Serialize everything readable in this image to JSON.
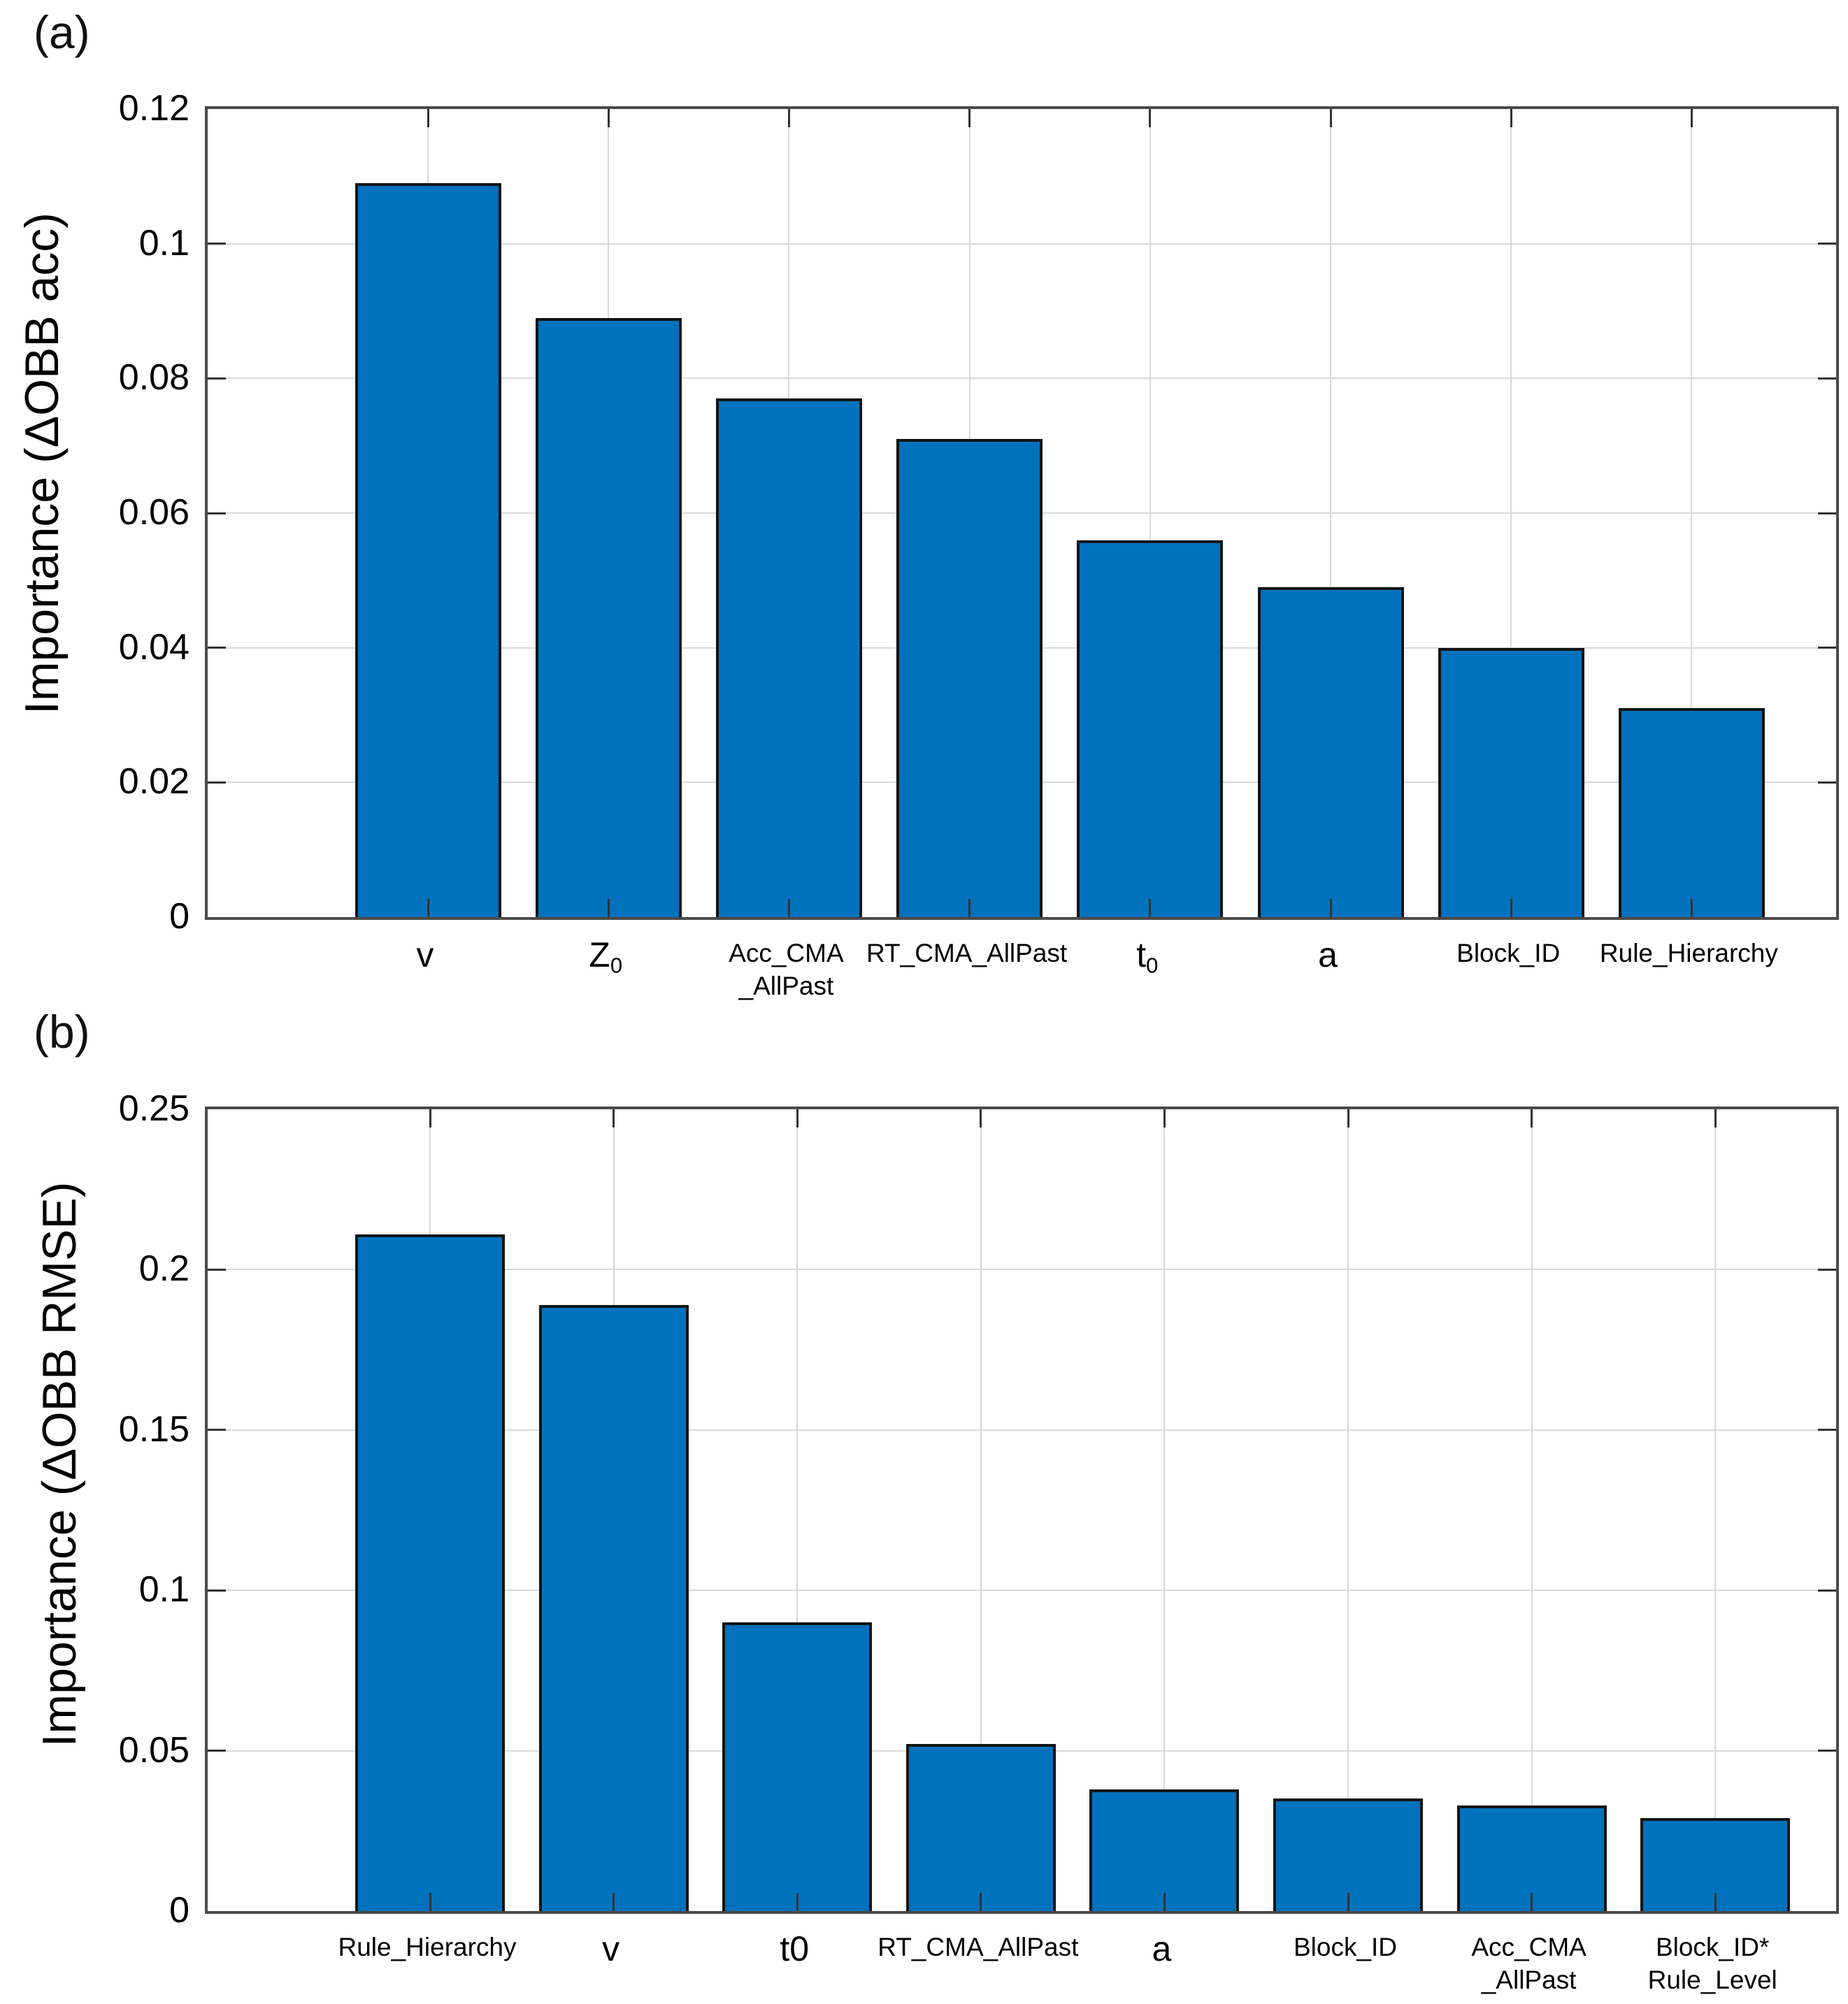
{
  "style": {
    "bar_fill": "#0072BD",
    "bar_edge": "#141414",
    "grid_color": "#d9d9d9",
    "axis_color": "#4a4a4a",
    "tick_color": "#333333",
    "text_color": "#000000",
    "background": "#ffffff"
  },
  "chart_data": [
    {
      "type": "bar",
      "panel_label": "(a)",
      "ylabel": "Importance  (ΔOBB acc)",
      "xlabel": "",
      "ylim": [
        0,
        0.12
      ],
      "grid": "on",
      "legend": "none",
      "yticks": [
        0,
        0.02,
        0.04,
        0.06,
        0.08,
        0.1,
        0.12
      ],
      "ytick_labels": [
        "0",
        "0.02",
        "0.04",
        "0.06",
        "0.08",
        "0.1",
        "0.12"
      ],
      "categories": [
        "v",
        "Z_0",
        "Acc_CMA_AllPast",
        "RT_CMA_AllPast",
        "t_0",
        "a",
        "Block_ID",
        "Rule_Hierarchy"
      ],
      "values": [
        0.109,
        0.089,
        0.077,
        0.071,
        0.056,
        0.049,
        0.04,
        0.031
      ],
      "category_labels": [
        {
          "large": true,
          "lines": [
            [
              {
                "t": "v"
              }
            ]
          ]
        },
        {
          "large": true,
          "lines": [
            [
              {
                "t": "Z"
              },
              {
                "t": "0",
                "sub": true
              }
            ]
          ]
        },
        {
          "large": false,
          "lines": [
            [
              {
                "t": "Acc_CMA"
              }
            ],
            [
              {
                "t": "_AllPast"
              }
            ]
          ]
        },
        {
          "large": false,
          "lines": [
            [
              {
                "t": "RT_CMA_AllPast"
              }
            ]
          ]
        },
        {
          "large": true,
          "lines": [
            [
              {
                "t": "t"
              },
              {
                "t": "0",
                "sub": true
              }
            ]
          ]
        },
        {
          "large": true,
          "lines": [
            [
              {
                "t": "a"
              }
            ]
          ]
        },
        {
          "large": false,
          "lines": [
            [
              {
                "t": "Block_ID"
              }
            ]
          ]
        },
        {
          "large": false,
          "lines": [
            [
              {
                "t": "Rule_Hierarchy"
              }
            ]
          ]
        }
      ]
    },
    {
      "type": "bar",
      "panel_label": "(b)",
      "ylabel": "Importance  (ΔOBB RMSE)",
      "xlabel": "",
      "ylim": [
        0,
        0.25
      ],
      "grid": "on",
      "legend": "none",
      "yticks": [
        0,
        0.05,
        0.1,
        0.15,
        0.2,
        0.25
      ],
      "ytick_labels": [
        "0",
        "0.05",
        "0.1",
        "0.15",
        "0.2",
        "0.25"
      ],
      "categories": [
        "Rule_Hierarchy",
        "v",
        "t0",
        "RT_CMA_AllPast",
        "a",
        "Block_ID",
        "Acc_CMA_AllPast",
        "Block_ID*Rule_Level"
      ],
      "values": [
        0.211,
        0.189,
        0.09,
        0.052,
        0.038,
        0.035,
        0.033,
        0.029
      ],
      "category_labels": [
        {
          "large": false,
          "lines": [
            [
              {
                "t": "Rule_Hierarchy"
              }
            ]
          ]
        },
        {
          "large": true,
          "lines": [
            [
              {
                "t": "v"
              }
            ]
          ]
        },
        {
          "large": true,
          "lines": [
            [
              {
                "t": "t0"
              }
            ]
          ]
        },
        {
          "large": false,
          "lines": [
            [
              {
                "t": "RT_CMA_AllPast"
              }
            ]
          ]
        },
        {
          "large": true,
          "lines": [
            [
              {
                "t": "a"
              }
            ]
          ]
        },
        {
          "large": false,
          "lines": [
            [
              {
                "t": "Block_ID"
              }
            ]
          ]
        },
        {
          "large": false,
          "lines": [
            [
              {
                "t": "Acc_CMA"
              }
            ],
            [
              {
                "t": "_AllPast"
              }
            ]
          ]
        },
        {
          "large": false,
          "lines": [
            [
              {
                "t": "Block_ID*"
              }
            ],
            [
              {
                "t": "Rule_Level"
              }
            ]
          ]
        }
      ]
    }
  ]
}
